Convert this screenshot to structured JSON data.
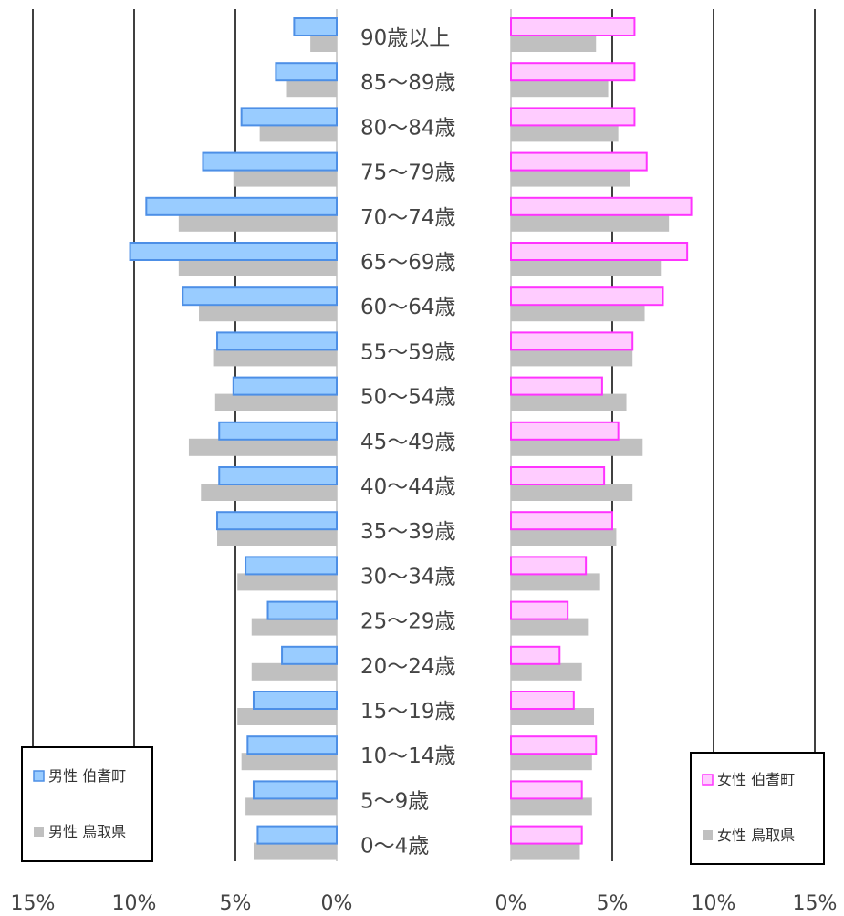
{
  "chart_data": {
    "type": "bar",
    "subtype": "population-pyramid",
    "orientation": "horizontal",
    "categories": [
      "90歳以上",
      "85～89歳",
      "80～84歳",
      "75～79歳",
      "70～74歳",
      "65～69歳",
      "60～64歳",
      "55～59歳",
      "50～54歳",
      "45～49歳",
      "40～44歳",
      "35～39歳",
      "30～34歳",
      "25～29歳",
      "20～24歳",
      "15～19歳",
      "10～14歳",
      "5～9歳",
      "0～4歳"
    ],
    "left": {
      "xlim": [
        15,
        0
      ],
      "tick_labels": [
        "15%",
        "10%",
        "5%",
        "0%"
      ],
      "tick_values": [
        15,
        10,
        5,
        0
      ],
      "series": [
        {
          "name": "男性 伯耆町",
          "color": "#99ccff",
          "stroke": "#4d8fe6",
          "values": [
            2.1,
            3.0,
            4.7,
            6.6,
            9.4,
            10.2,
            7.6,
            5.9,
            5.1,
            5.8,
            5.8,
            5.9,
            4.5,
            3.4,
            2.7,
            4.1,
            4.4,
            4.1,
            3.9
          ]
        },
        {
          "name": "男性 鳥取県",
          "color": "#c0c0c0",
          "values": [
            1.3,
            2.5,
            3.8,
            5.1,
            7.8,
            7.8,
            6.8,
            6.1,
            6.0,
            7.3,
            6.7,
            5.9,
            4.9,
            4.2,
            4.2,
            4.9,
            4.7,
            4.5,
            4.1
          ]
        }
      ],
      "legend_position": "bottom-left"
    },
    "right": {
      "xlim": [
        0,
        15
      ],
      "tick_labels": [
        "0%",
        "5%",
        "10%",
        "15%"
      ],
      "tick_values": [
        0,
        5,
        10,
        15
      ],
      "series": [
        {
          "name": "女性 伯耆町",
          "color": "#ffccff",
          "stroke": "#ff33ff",
          "values": [
            6.1,
            6.1,
            6.1,
            6.7,
            8.9,
            8.7,
            7.5,
            6.0,
            4.5,
            5.3,
            4.6,
            5.0,
            3.7,
            2.8,
            2.4,
            3.1,
            4.2,
            3.5,
            3.5
          ]
        },
        {
          "name": "女性 鳥取県",
          "color": "#c0c0c0",
          "values": [
            4.2,
            4.8,
            5.3,
            5.9,
            7.8,
            7.4,
            6.6,
            6.0,
            5.7,
            6.5,
            6.0,
            5.2,
            4.4,
            3.8,
            3.5,
            4.1,
            4.0,
            4.0,
            3.4
          ]
        }
      ],
      "legend_position": "bottom-right"
    },
    "grid": true
  }
}
